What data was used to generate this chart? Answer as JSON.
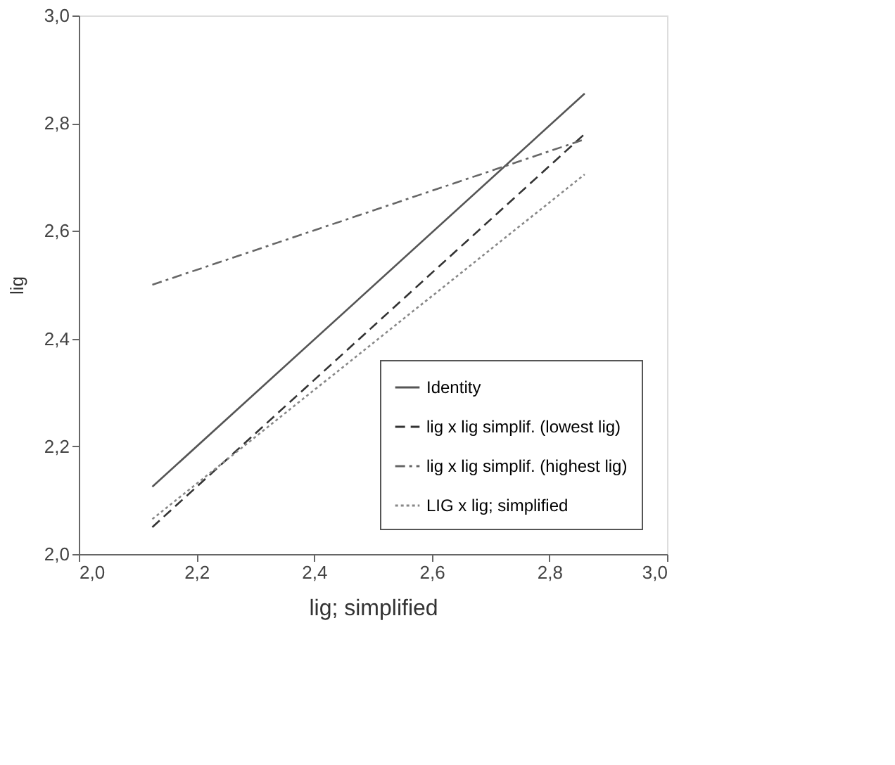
{
  "chart_data": {
    "type": "line",
    "xlabel": "lig; simplified",
    "ylabel": "lig",
    "grid": false,
    "legend": "bottom right",
    "marker": "none",
    "x": [
      2.125,
      2.86
    ],
    "xlim": [
      2.0,
      3.0
    ],
    "ylim": [
      2.0,
      3.0
    ],
    "xticks": [
      {
        "value": 2.0,
        "label": "2,0"
      },
      {
        "value": 2.2,
        "label": "2,2"
      },
      {
        "value": 2.4,
        "label": "2,4"
      },
      {
        "value": 2.6,
        "label": "2,6"
      },
      {
        "value": 2.8,
        "label": "2,8"
      },
      {
        "value": 3.0,
        "label": "3,0"
      }
    ],
    "yticks": [
      {
        "value": 2.0,
        "label": "2,0"
      },
      {
        "value": 2.2,
        "label": "2,2"
      },
      {
        "value": 2.4,
        "label": "2,4"
      },
      {
        "value": 2.6,
        "label": "2,6"
      },
      {
        "value": 2.8,
        "label": "2,8"
      },
      {
        "value": 3.0,
        "label": "3,0"
      }
    ],
    "series": [
      {
        "name": "Identity",
        "color": "#555555",
        "line_style": "solid",
        "values": [
          2.125,
          2.855
        ]
      },
      {
        "name": "lig x lig simplif. (lowest lig)",
        "color": "#333333",
        "line_style": "dashed",
        "values": [
          2.05,
          2.78
        ]
      },
      {
        "name": "lig x lig simplif. (highest lig)",
        "color": "#666666",
        "line_style": "dashdot",
        "values": [
          2.5,
          2.77
        ]
      },
      {
        "name": "LIG x lig; simplified",
        "color": "#888888",
        "line_style": "dotted",
        "values": [
          2.065,
          2.705
        ]
      }
    ]
  }
}
